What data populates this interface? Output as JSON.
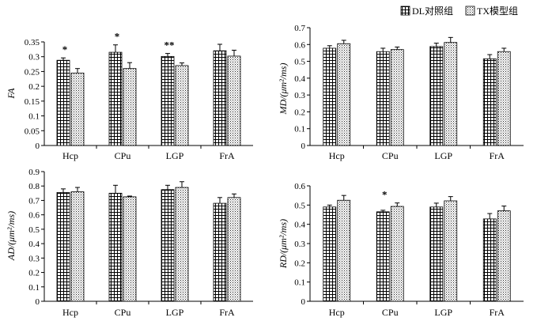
{
  "legend": {
    "series_a": "DL对照组",
    "series_b": "TX模型组"
  },
  "chart_data": [
    {
      "type": "bar",
      "id": "fa",
      "ylabel": "FA",
      "ylim": [
        0,
        0.35
      ],
      "yticks": [
        "0",
        "0.05",
        "0.1",
        "0.15",
        "0.2",
        "0.25",
        "0.3",
        "0.35"
      ],
      "categories": [
        "Hcp",
        "CPu",
        "LGP",
        "FrA"
      ],
      "series": [
        {
          "name": "DL对照组",
          "values": [
            0.288,
            0.315,
            0.301,
            0.32
          ],
          "errors": [
            0.008,
            0.025,
            0.01,
            0.022
          ]
        },
        {
          "name": "TX模型组",
          "values": [
            0.245,
            0.26,
            0.27,
            0.302
          ],
          "errors": [
            0.015,
            0.02,
            0.009,
            0.02
          ]
        }
      ],
      "annotations": [
        "*",
        "*",
        "**",
        ""
      ]
    },
    {
      "type": "bar",
      "id": "md",
      "ylabel": "MD/(μm²/ms)",
      "ylim": [
        0,
        0.7
      ],
      "yticks": [
        "0",
        "0.1",
        "0.2",
        "0.3",
        "0.4",
        "0.5",
        "0.6",
        "0.7"
      ],
      "categories": [
        "Hcp",
        "CPu",
        "LGP",
        "FrA"
      ],
      "series": [
        {
          "name": "DL对照组",
          "values": [
            0.578,
            0.558,
            0.588,
            0.515
          ],
          "errors": [
            0.015,
            0.02,
            0.02,
            0.025
          ]
        },
        {
          "name": "TX模型组",
          "values": [
            0.605,
            0.57,
            0.612,
            0.558
          ],
          "errors": [
            0.02,
            0.015,
            0.03,
            0.02
          ]
        }
      ],
      "annotations": [
        "",
        "",
        "",
        ""
      ]
    },
    {
      "type": "bar",
      "id": "ad",
      "ylabel": "AD/(μm²/ms)",
      "ylim": [
        0,
        0.9
      ],
      "yticks": [
        "0",
        "0.1",
        "0.2",
        "0.3",
        "0.4",
        "0.5",
        "0.6",
        "0.7",
        "0.8",
        "0.9"
      ],
      "categories": [
        "Hcp",
        "CPu",
        "LGP",
        "FrA"
      ],
      "series": [
        {
          "name": "DL对照组",
          "values": [
            0.755,
            0.75,
            0.775,
            0.68
          ],
          "errors": [
            0.025,
            0.055,
            0.03,
            0.04
          ]
        },
        {
          "name": "TX模型组",
          "values": [
            0.76,
            0.725,
            0.79,
            0.72
          ],
          "errors": [
            0.03,
            0.005,
            0.04,
            0.025
          ]
        }
      ],
      "annotations": [
        "",
        "",
        "",
        ""
      ]
    },
    {
      "type": "bar",
      "id": "rd",
      "ylabel": "RD/(μm²/ms)",
      "ylim": [
        0,
        0.6
      ],
      "yticks": [
        "0",
        "0.1",
        "0.2",
        "0.3",
        "0.4",
        "0.5",
        "0.6"
      ],
      "categories": [
        "Hcp",
        "CPu",
        "LGP",
        "FrA"
      ],
      "series": [
        {
          "name": "DL对照组",
          "values": [
            0.49,
            0.465,
            0.49,
            0.428
          ],
          "errors": [
            0.01,
            0.008,
            0.02,
            0.028
          ]
        },
        {
          "name": "TX模型组",
          "values": [
            0.525,
            0.493,
            0.522,
            0.47
          ],
          "errors": [
            0.025,
            0.018,
            0.022,
            0.025
          ]
        }
      ],
      "annotations": [
        "",
        "*",
        "",
        ""
      ]
    }
  ]
}
